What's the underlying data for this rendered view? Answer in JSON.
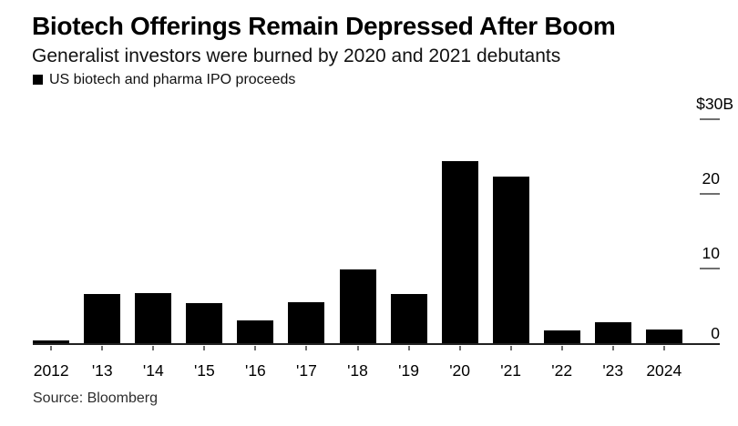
{
  "header": {
    "title": "Biotech Offerings Remain Depressed After Boom",
    "subtitle": "Generalist investors were burned by 2020 and 2021 debutants"
  },
  "legend": {
    "label": "US biotech and pharma IPO proceeds",
    "swatch_color": "#000000"
  },
  "source": "Source: Bloomberg",
  "chart_data": {
    "type": "bar",
    "title": "Biotech Offerings Remain Depressed After Boom",
    "subtitle": "Generalist investors were burned by 2020 and 2021 debutants",
    "series_name": "US biotech and pharma IPO proceeds",
    "categories": [
      "2012",
      "'13",
      "'14",
      "'15",
      "'16",
      "'17",
      "'18",
      "'19",
      "'20",
      "'21",
      "'22",
      "'23",
      "2024"
    ],
    "values": [
      0.4,
      6.6,
      6.7,
      5.4,
      3.1,
      5.5,
      9.9,
      6.6,
      24.4,
      22.3,
      1.8,
      2.8,
      1.9
    ],
    "unit": "billions of US dollars",
    "ylim": [
      0,
      30
    ],
    "yticks": [
      {
        "value": 30,
        "label": "$30B"
      },
      {
        "value": 20,
        "label": "20"
      },
      {
        "value": 10,
        "label": "10"
      },
      {
        "value": 0,
        "label": "0"
      }
    ],
    "bar_color": "#000000",
    "grid": false,
    "legend_position": "top-left",
    "y_axis_position": "right"
  }
}
